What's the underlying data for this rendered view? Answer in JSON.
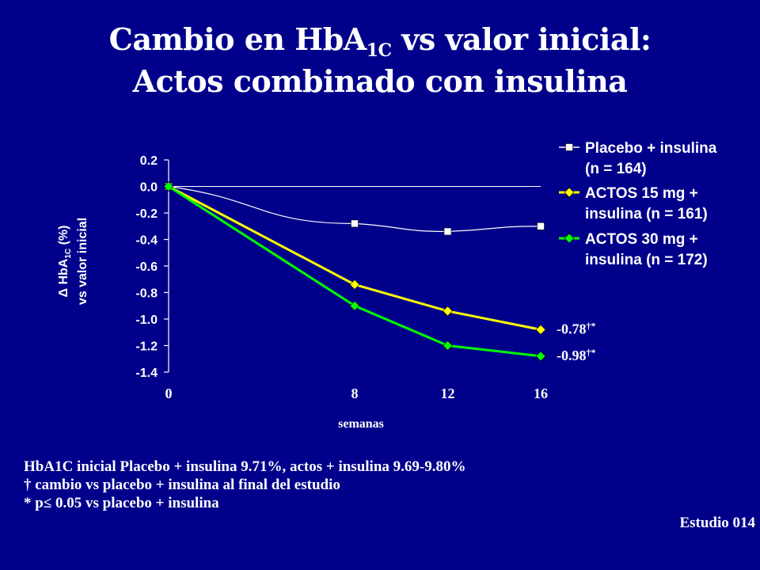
{
  "title": {
    "line1_prefix": "Cambio en HbA",
    "line1_sub": "1C",
    "line1_suffix": " vs valor inicial:",
    "line2": "Actos combinado con insulina"
  },
  "chart_data": {
    "type": "line",
    "x": [
      0,
      8,
      12,
      16
    ],
    "xlabel": "semanas",
    "ylabel_line1_prefix": "Δ HbA",
    "ylabel_line1_sub": "1C",
    "ylabel_line1_suffix": " (%)",
    "ylabel_line2": "vs valor inicial",
    "ylim": [
      -1.4,
      0.2
    ],
    "yticks": [
      "0.2",
      "0.0",
      "-0.2",
      "-0.4",
      "-0.6",
      "-0.8",
      "-1.0",
      "-1.2",
      "-1.4"
    ],
    "ytick_values": [
      0.2,
      0.0,
      -0.2,
      -0.4,
      -0.6,
      -0.8,
      -1.0,
      -1.2,
      -1.4
    ],
    "xticks": [
      "0",
      "8",
      "12",
      "16"
    ],
    "zero_line": true,
    "legend_position": "right",
    "series": [
      {
        "name_line1": "Placebo + insulina",
        "name_line2": "(n = 164)",
        "values": [
          0.0,
          -0.28,
          -0.34,
          -0.3
        ],
        "color": "#ffffff",
        "marker": "square"
      },
      {
        "name_line1": "ACTOS 15 mg +",
        "name_line2": "insulina (n = 161)",
        "values": [
          0.0,
          -0.74,
          -0.94,
          -1.08
        ],
        "color": "#ffff00",
        "marker": "diamond"
      },
      {
        "name_line1": "ACTOS 30 mg +",
        "name_line2": "insulina (n = 172)",
        "values": [
          0.0,
          -0.9,
          -1.2,
          -1.28
        ],
        "color": "#00ff00",
        "marker": "diamond"
      }
    ],
    "annotations": [
      {
        "value": "-0.78",
        "sup": "†*",
        "series": 1
      },
      {
        "value": "-0.98",
        "sup": "†*",
        "series": 2
      }
    ]
  },
  "footnotes": {
    "line1": "HbA1C inicial Placebo + insulina 9.71%, actos + insulina 9.69-9.80%",
    "line2": "† cambio vs placebo + insulina al final del estudio",
    "line3": "* p≤ 0.05 vs placebo + insulina"
  },
  "study": "Estudio 014"
}
